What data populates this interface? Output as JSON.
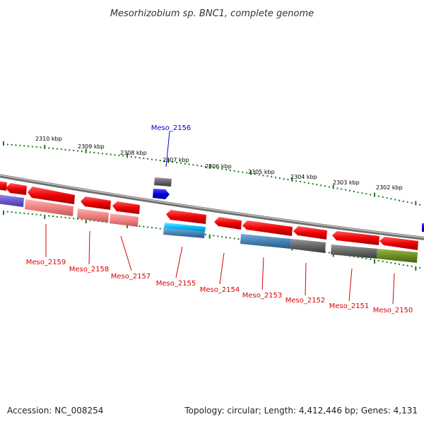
{
  "title": "Mesorhizobium sp. BNC1, complete genome",
  "footer": {
    "accession": "Accession: NC_008254",
    "topology": "Topology: circular; Length: 4,412,446 bp; Genes: 4,131"
  },
  "colors": {
    "background": "#ffffff",
    "backbone": "#8a8a8a",
    "tick": "#1a7a1a",
    "gene_red": "#ee0000",
    "gene_blue": "#0000dd",
    "gene_grey": "#666666",
    "gene_purple": "#6a5acd",
    "gene_steel": "#4682b4",
    "gene_cyan": "#00bfff",
    "gene_olive": "#6b8e23",
    "gene_pink": "#f08080",
    "label_red": "#dd0000",
    "label_blue": "#0000cc"
  },
  "kbp_labels": [
    "2310 kbp",
    "2309 kbp",
    "2308 kbp",
    "2307 kbp",
    "2306 kbp",
    "2305 kbp",
    "2304 kbp",
    "2303 kbp",
    "2302 kbp"
  ],
  "gene_labels": [
    {
      "text": "Meso_2156",
      "color": "label_blue"
    },
    {
      "text": "Meso_2159",
      "color": "label_red"
    },
    {
      "text": "Meso_2158",
      "color": "label_red"
    },
    {
      "text": "Meso_2157",
      "color": "label_red"
    },
    {
      "text": "Meso_2155",
      "color": "label_red"
    },
    {
      "text": "Meso_2154",
      "color": "label_red"
    },
    {
      "text": "Meso_2153",
      "color": "label_red"
    },
    {
      "text": "Meso_2152",
      "color": "label_red"
    },
    {
      "text": "Meso_2151",
      "color": "label_red"
    },
    {
      "text": "Meso_2150",
      "color": "label_red"
    }
  ]
}
